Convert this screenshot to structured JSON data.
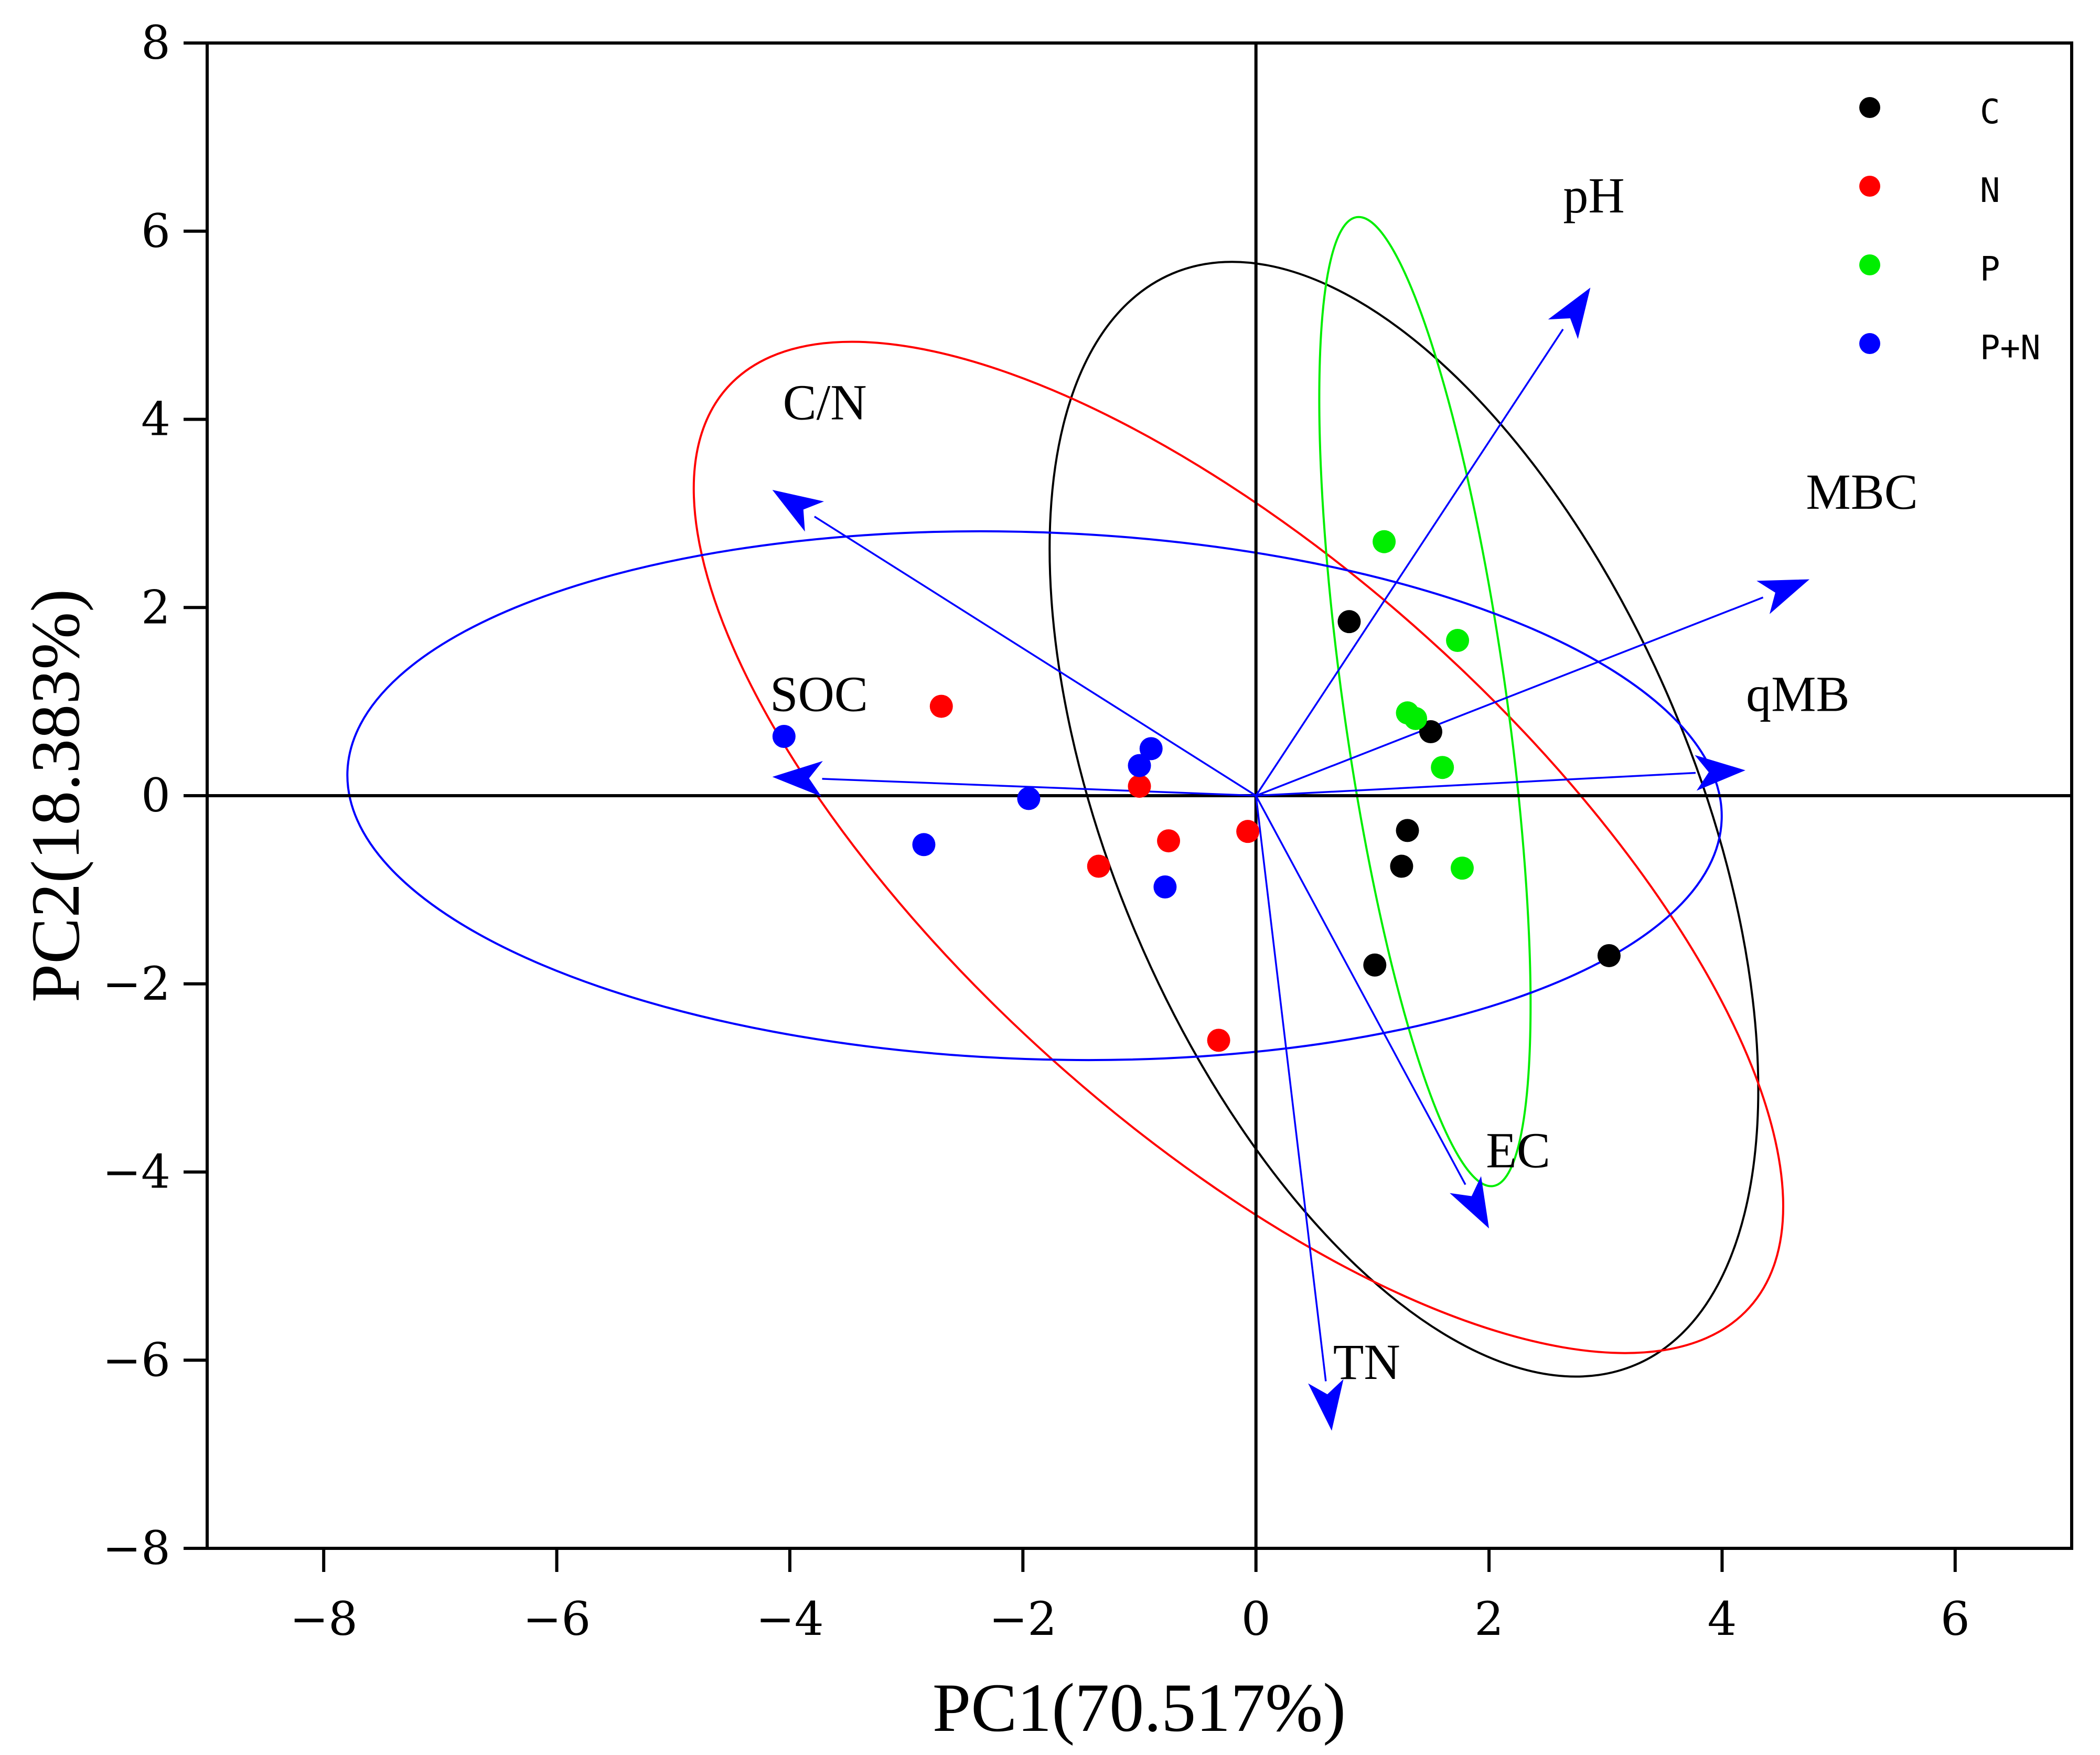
{
  "chart_data": {
    "type": "scatter",
    "subtype": "pca-biplot",
    "xlabel": "PC1(70.517%)",
    "ylabel": "PC2(18.383%)",
    "xlim": [
      -9,
      7
    ],
    "ylim": [
      -8,
      8
    ],
    "xticks": [
      -8,
      -6,
      -4,
      -2,
      0,
      2,
      4,
      6
    ],
    "yticks": [
      -8,
      -6,
      -4,
      -2,
      0,
      2,
      4,
      6,
      8
    ],
    "grid": false,
    "reference_lines": [
      0,
      0
    ],
    "legend": {
      "placement": "top-right",
      "entries": [
        "C",
        "N",
        "P",
        "P+N"
      ]
    },
    "series": [
      {
        "name": "C",
        "color": "#000000",
        "points": [
          [
            0.8,
            1.85
          ],
          [
            1.5,
            0.68
          ],
          [
            1.3,
            -0.37
          ],
          [
            1.25,
            -0.75
          ],
          [
            1.02,
            -1.8
          ],
          [
            3.03,
            -1.7
          ]
        ]
      },
      {
        "name": "N",
        "color": "#ff0000",
        "points": [
          [
            -2.7,
            0.95
          ],
          [
            -1.0,
            0.1
          ],
          [
            -0.75,
            -0.48
          ],
          [
            -1.35,
            -0.75
          ],
          [
            -0.07,
            -0.38
          ],
          [
            -0.32,
            -2.6
          ]
        ]
      },
      {
        "name": "P",
        "color": "#00ee00",
        "points": [
          [
            1.1,
            2.7
          ],
          [
            1.73,
            1.65
          ],
          [
            1.3,
            0.88
          ],
          [
            1.37,
            0.82
          ],
          [
            1.6,
            0.3
          ],
          [
            1.77,
            -0.77
          ]
        ]
      },
      {
        "name": "P+N",
        "color": "#0000ff",
        "points": [
          [
            -4.05,
            0.63
          ],
          [
            -0.9,
            0.5
          ],
          [
            -1.0,
            0.32
          ],
          [
            -1.95,
            -0.03
          ],
          [
            -2.85,
            -0.52
          ],
          [
            -0.78,
            -0.97
          ]
        ]
      }
    ],
    "ellipses": [
      {
        "group": "C",
        "color": "#000000",
        "center": [
          1.27,
          -0.25
        ],
        "semi_axes": [
          2.5,
          6.3
        ],
        "rotation_deg": 23
      },
      {
        "group": "N",
        "color": "#ff0000",
        "center": [
          -0.15,
          -0.55
        ],
        "semi_axes": [
          5.9,
          3.0
        ],
        "rotation_deg": -42
      },
      {
        "group": "P",
        "color": "#00ee00",
        "center": [
          1.45,
          1.0
        ],
        "semi_axes": [
          0.7,
          5.2
        ],
        "rotation_deg": 8
      },
      {
        "group": "P+N",
        "color": "#0000ff",
        "center": [
          -1.9,
          0.0
        ],
        "semi_axes": [
          5.9,
          2.8
        ],
        "rotation_deg": -2
      }
    ],
    "loadings": [
      {
        "name": "pH",
        "x": 2.87,
        "y": 5.4,
        "label_x": 2.9,
        "label_y": 6.2
      },
      {
        "name": "C/N",
        "x": -4.15,
        "y": 3.25,
        "label_x": -3.7,
        "label_y": 4.0
      },
      {
        "name": "MBC",
        "x": 4.75,
        "y": 2.3,
        "label_x": 5.2,
        "label_y": 3.05
      },
      {
        "name": "SOC",
        "x": -4.15,
        "y": 0.2,
        "label_x": -3.75,
        "label_y": 0.9
      },
      {
        "name": "qMB",
        "x": 4.2,
        "y": 0.27,
        "label_x": 4.65,
        "label_y": 0.9
      },
      {
        "name": "EC",
        "x": 2.0,
        "y": -4.6,
        "label_x": 2.25,
        "label_y": -3.95
      },
      {
        "name": "TN",
        "x": 0.65,
        "y": -6.75,
        "label_x": 0.95,
        "label_y": -6.2
      }
    ],
    "arrow_color": "#0000ff"
  }
}
